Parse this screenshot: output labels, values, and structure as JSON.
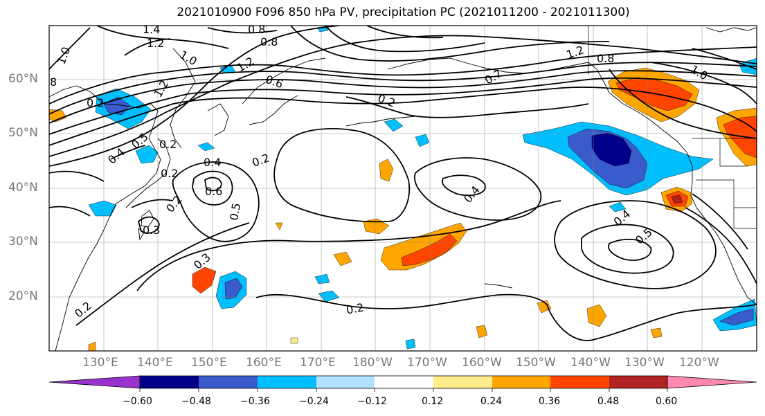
{
  "title": "2021010900 F096 850 hPa PV, precipitation PC (2021011200 - 2021011300)",
  "latitude_labels": [
    "60°N",
    "50°N",
    "40°N",
    "30°N",
    "20°N"
  ],
  "longitude_labels": [
    "130°E",
    "140°E",
    "150°E",
    "160°E",
    "170°E",
    "180°W",
    "170°W",
    "160°W",
    "150°W",
    "140°W",
    "130°W",
    "120°W"
  ],
  "colorbar": {
    "ticks": [
      "−0.60",
      "−0.48",
      "−0.36",
      "−0.24",
      "−0.12",
      "0.12",
      "0.24",
      "0.36",
      "0.48",
      "0.60"
    ],
    "colors": [
      "#9932CC",
      "#00008B",
      "#3A5BCC",
      "#00BFFF",
      "#B0E2FF",
      "#FFFFFF",
      "#FFEC8B",
      "#FFA500",
      "#FF4500",
      "#B22222",
      "#FF88B0"
    ]
  },
  "contour_labels": [
    "1.4",
    "1.2",
    "1.0",
    "0.8",
    "1.2",
    "0.8",
    "0.6",
    "0.2",
    "1.2",
    "0.8",
    "1.0",
    "0.7",
    "0.2",
    "0.5",
    "0.4",
    "0.2",
    "0.4",
    "0.6",
    "0.5",
    "0.2",
    "0.3",
    "0.3",
    "0.4",
    "0.4",
    "0.5",
    "0.2",
    "0.2",
    "1.0",
    "8",
    "0.2",
    "1.2",
    "0.2"
  ]
}
